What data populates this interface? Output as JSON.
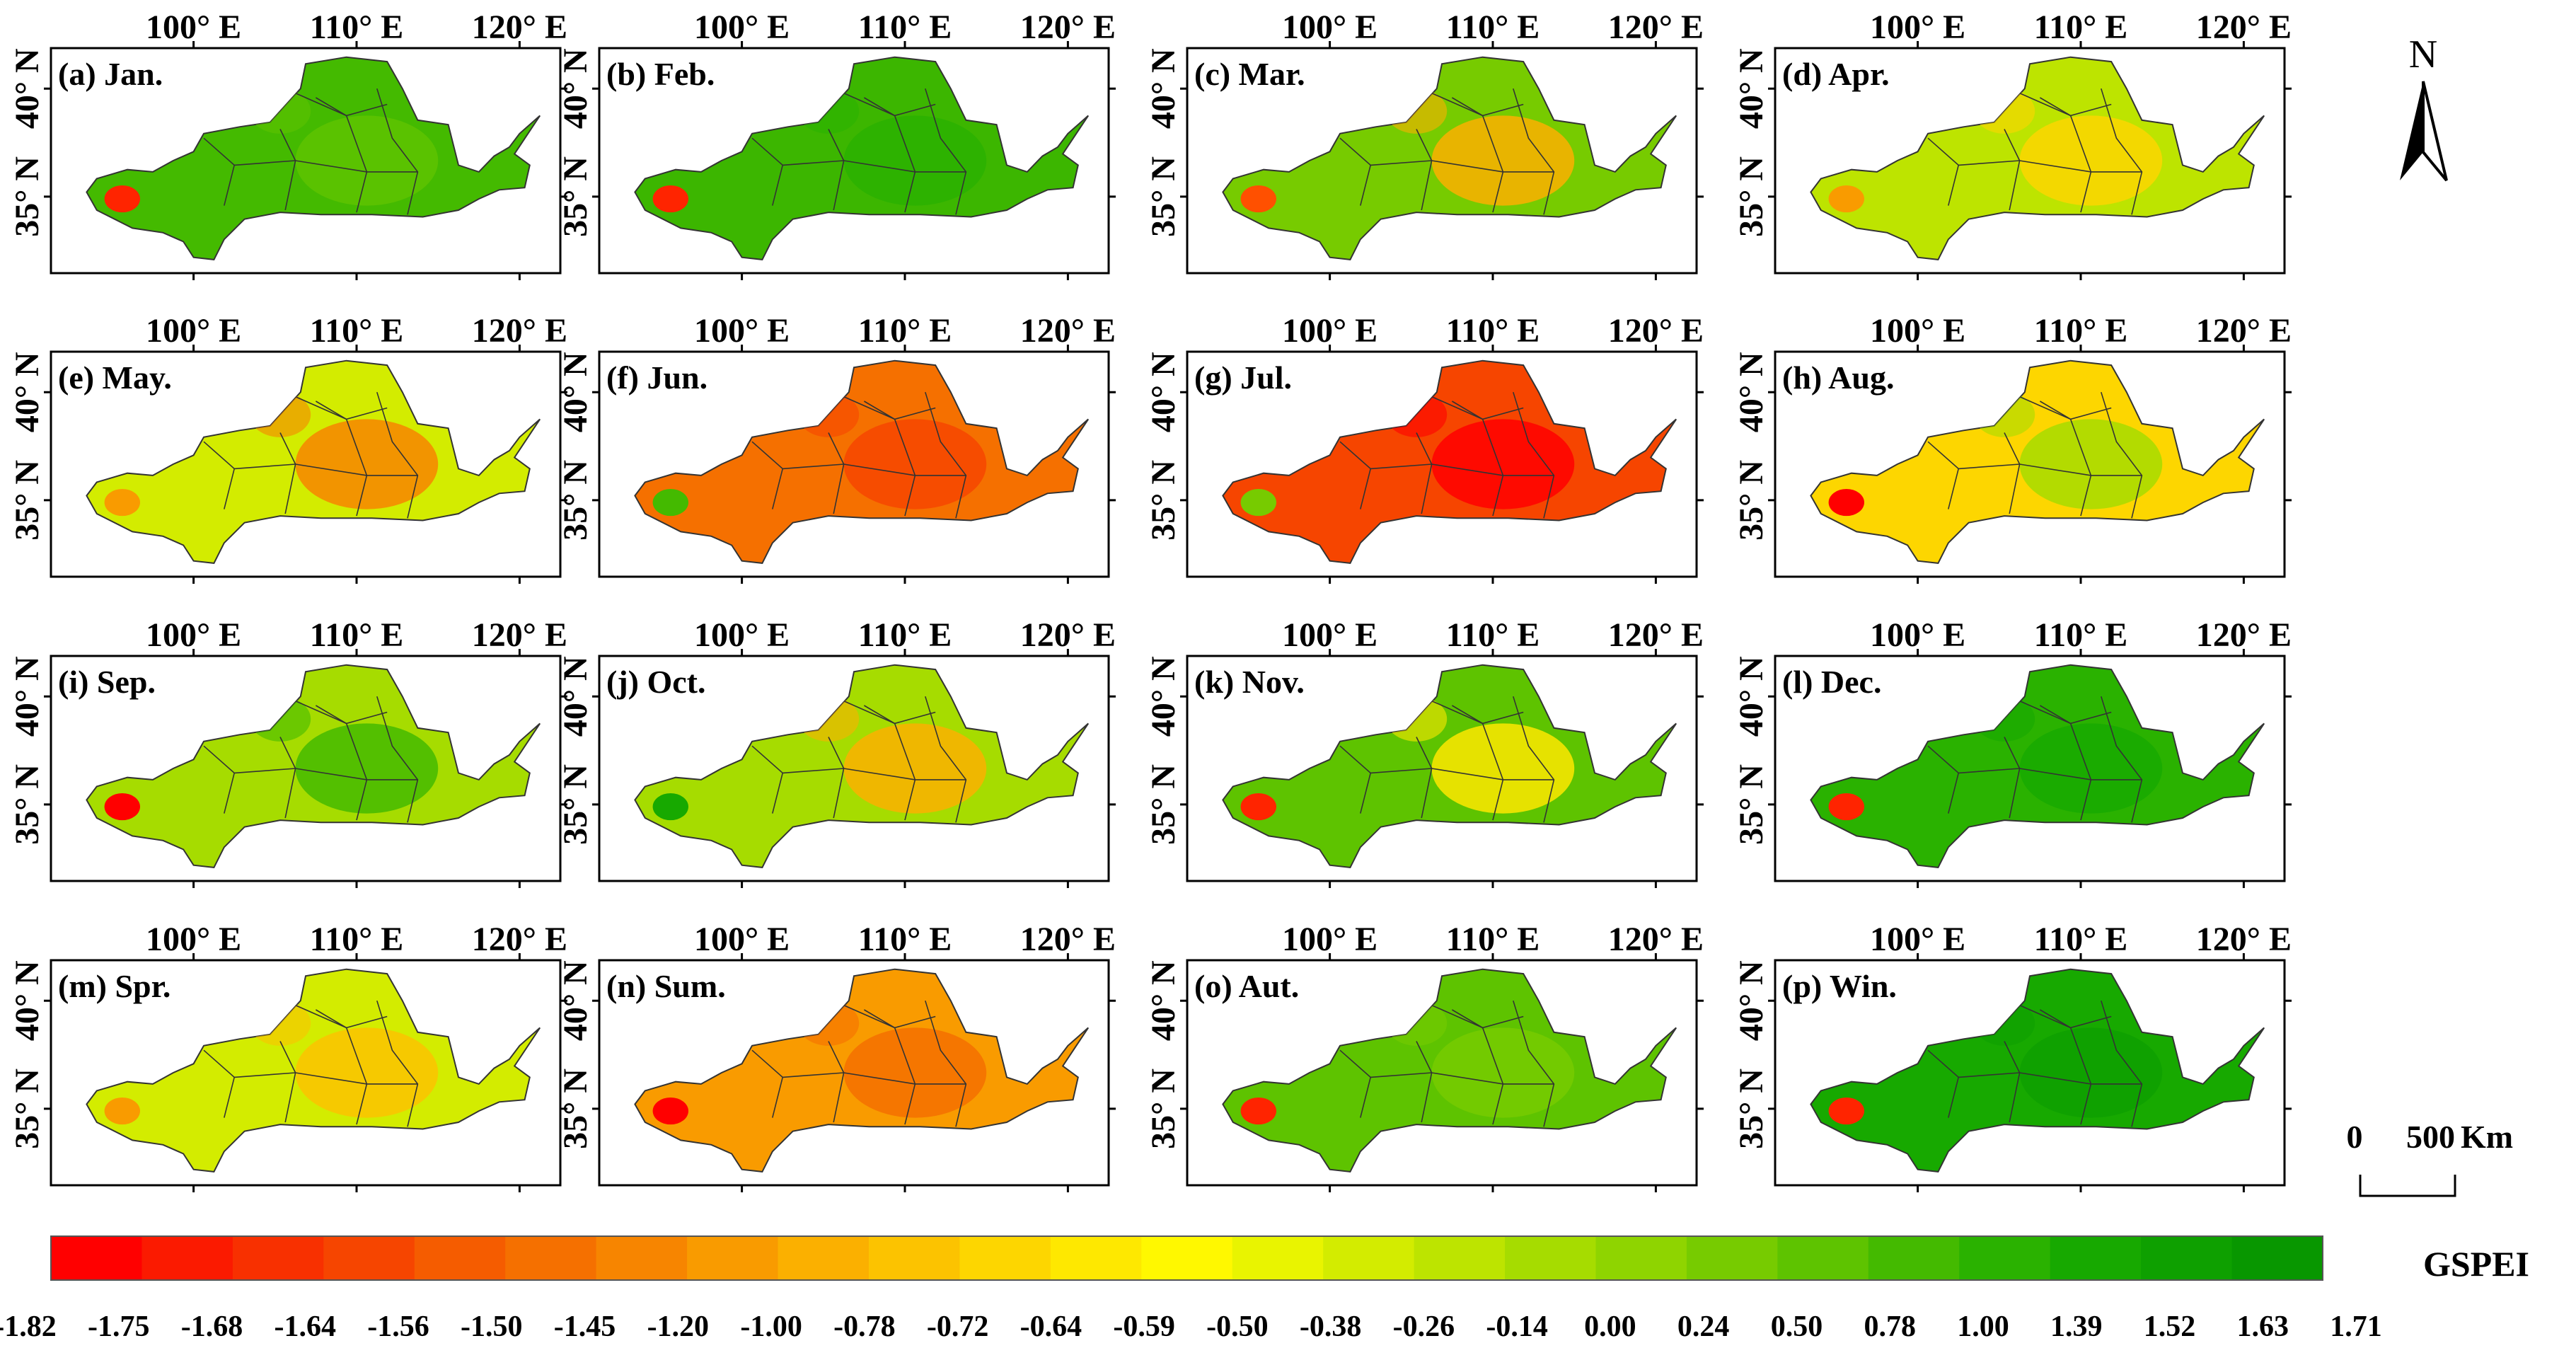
{
  "figure": {
    "colorbar_title": "GSPEI",
    "north_label": "N",
    "scale_bar": {
      "start_label": "0",
      "end_label": "500",
      "unit": "Km"
    },
    "lon_ticks": [
      "100° E",
      "110° E",
      "120° E"
    ],
    "lat_ticks": [
      "40° N",
      "35° N"
    ],
    "colorbar_labels": [
      "-1.82",
      "-1.75",
      "-1.68",
      "-1.64",
      "-1.56",
      "-1.50",
      "-1.45",
      "-1.20",
      "-1.00",
      "-0.78",
      "-0.72",
      "-0.64",
      "-0.59",
      "-0.50",
      "-0.38",
      "-0.26",
      "-0.14",
      "0.00",
      "0.24",
      "0.50",
      "0.78",
      "1.00",
      "1.39",
      "1.52",
      "1.63",
      "1.71"
    ],
    "colorbar_colors": [
      "#ff0000",
      "#fb1a00",
      "#f83000",
      "#f64500",
      "#f55c00",
      "#f57000",
      "#f78500",
      "#f99b00",
      "#fbb000",
      "#fcc300",
      "#fdd600",
      "#fee800",
      "#fff800",
      "#e9f400",
      "#d3ec00",
      "#bde400",
      "#a6dc00",
      "#8fd400",
      "#77cb00",
      "#5ec300",
      "#44ba00",
      "#2ab200",
      "#17a900",
      "#0ea000",
      "#089700"
    ]
  },
  "panels": [
    {
      "label": "(a) Jan.",
      "base_color": "#44ba00",
      "spot_color": "#ff2400",
      "patch_color": "#5ec300"
    },
    {
      "label": "(b) Feb.",
      "base_color": "#3cb600",
      "spot_color": "#ff2400",
      "patch_color": "#2ab200"
    },
    {
      "label": "(c) Mar.",
      "base_color": "#77cb00",
      "spot_color": "#ff5000",
      "patch_color": "#fbb000"
    },
    {
      "label": "(d) Apr.",
      "base_color": "#bde400",
      "spot_color": "#f99b00",
      "patch_color": "#fdd600"
    },
    {
      "label": "(e) May.",
      "base_color": "#d3ec00",
      "spot_color": "#f99b00",
      "patch_color": "#f78500"
    },
    {
      "label": "(f) Jun.",
      "base_color": "#f57000",
      "spot_color": "#44ba00",
      "patch_color": "#f64500"
    },
    {
      "label": "(g) Jul.",
      "base_color": "#f64500",
      "spot_color": "#77cb00",
      "patch_color": "#ff0000"
    },
    {
      "label": "(h) Aug.",
      "base_color": "#fdd600",
      "spot_color": "#ff0000",
      "patch_color": "#a6dc00"
    },
    {
      "label": "(i) Sep.",
      "base_color": "#a6dc00",
      "spot_color": "#ff0000",
      "patch_color": "#44ba00"
    },
    {
      "label": "(j) Oct.",
      "base_color": "#a6dc00",
      "spot_color": "#17a900",
      "patch_color": "#fbb000"
    },
    {
      "label": "(k) Nov.",
      "base_color": "#5ec300",
      "spot_color": "#ff2400",
      "patch_color": "#fee800"
    },
    {
      "label": "(l) Dec.",
      "base_color": "#2ab200",
      "spot_color": "#ff2400",
      "patch_color": "#17a900"
    },
    {
      "label": "(m) Spr.",
      "base_color": "#d3ec00",
      "spot_color": "#f99b00",
      "patch_color": "#fcc300"
    },
    {
      "label": "(n) Sum.",
      "base_color": "#f99b00",
      "spot_color": "#ff0000",
      "patch_color": "#f57000"
    },
    {
      "label": "(o) Aut.",
      "base_color": "#5ec300",
      "spot_color": "#ff2400",
      "patch_color": "#77cb00"
    },
    {
      "label": "(p) Win.",
      "base_color": "#17a900",
      "spot_color": "#ff2400",
      "patch_color": "#0ea000"
    }
  ]
}
